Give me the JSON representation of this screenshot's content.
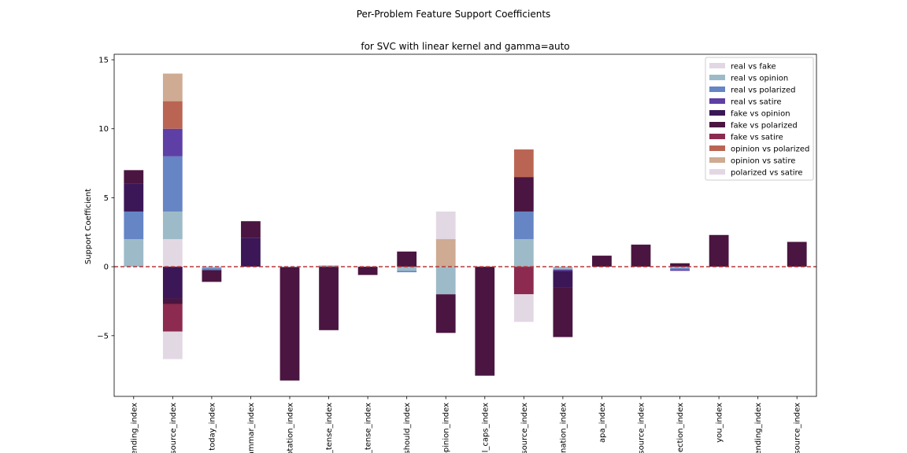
{
  "chart_data": {
    "type": "bar",
    "stacked": true,
    "title": "Per-Problem Feature Support Coefficients",
    "subtitle": "for SVC with linear kernel and gamma=auto",
    "xlabel": "",
    "ylabel": "Support Coefficient",
    "ylim": [
      -9.4,
      15.4
    ],
    "yticks": [
      -5,
      0,
      5,
      10,
      15
    ],
    "ytick_labels": [
      "−5",
      "0",
      "5",
      "10",
      "15"
    ],
    "reference_line": {
      "y": 0,
      "style": "dashed",
      "color": "#b5383a"
    },
    "legend_position": "top-right",
    "categories": [
      "ending_index",
      "source_index",
      "today_index",
      "grammar_index",
      "quotation_index",
      "_tense_index",
      "_tense_index",
      "should_index",
      "opinion_index",
      "l_caps_index",
      "source_index",
      "nation_index",
      "apa_index",
      "source_index",
      "ection_index",
      "you_index",
      "ending_index",
      "source_index"
    ],
    "series": [
      {
        "name": "real vs fake",
        "color": "#e2d8e4",
        "values": [
          0,
          2,
          0,
          0,
          0,
          0,
          0,
          0,
          0,
          0,
          0,
          0,
          0,
          0,
          0,
          0,
          0,
          0
        ]
      },
      {
        "name": "real vs opinion",
        "color": "#9dbac8",
        "values": [
          2,
          2,
          -0.1,
          0,
          0,
          0.1,
          0,
          -0.3,
          -2,
          0,
          2,
          -0.2,
          0,
          0,
          -0.1,
          0,
          0,
          0
        ]
      },
      {
        "name": "real vs polarized",
        "color": "#6585c4",
        "values": [
          2,
          4,
          -0.15,
          0,
          -0.05,
          0,
          0,
          -0.1,
          0,
          0,
          2,
          0,
          0,
          0,
          -0.1,
          0,
          0,
          0
        ]
      },
      {
        "name": "real vs satire",
        "color": "#5e3fa6",
        "values": [
          0,
          2,
          0,
          0,
          0,
          0,
          0,
          0,
          0,
          0,
          0,
          -0.1,
          0,
          0,
          -0.1,
          0,
          0,
          0
        ]
      },
      {
        "name": "fake vs opinion",
        "color": "#3b1757",
        "values": [
          2,
          -2.3,
          0,
          2.1,
          0,
          0,
          0,
          0,
          0,
          0,
          0,
          -1.2,
          0,
          0,
          0,
          0,
          0,
          0
        ]
      },
      {
        "name": "fake vs polarized",
        "color": "#4a1540",
        "values": [
          1,
          -0.4,
          -0.85,
          1.2,
          -8.2,
          -4.6,
          -0.6,
          1.1,
          -2.8,
          -7.9,
          2.5,
          -3.6,
          0.8,
          1.6,
          0.25,
          2.3,
          0,
          1.8
        ]
      },
      {
        "name": "fake vs satire",
        "color": "#8c2b4f",
        "values": [
          0,
          -2,
          0,
          0,
          0,
          0,
          0,
          0,
          0,
          0,
          -2,
          0,
          0,
          0,
          0,
          0,
          0,
          0
        ]
      },
      {
        "name": "opinion vs polarized",
        "color": "#ba6554",
        "values": [
          0,
          2,
          0,
          0,
          0,
          0,
          0,
          0,
          0,
          0,
          2,
          0,
          0,
          0,
          0,
          0,
          0,
          0
        ]
      },
      {
        "name": "opinion vs satire",
        "color": "#ceab92",
        "values": [
          0,
          2,
          0,
          0,
          0,
          0,
          0,
          0,
          2,
          0,
          0,
          0,
          0,
          0,
          0,
          0,
          0,
          0
        ]
      },
      {
        "name": "polarized vs satire",
        "color": "#e2d8e4",
        "values": [
          0,
          -2,
          0,
          0,
          0,
          0,
          0,
          0,
          2,
          0,
          -2,
          0,
          0,
          0,
          0,
          0,
          0,
          0
        ]
      }
    ]
  }
}
